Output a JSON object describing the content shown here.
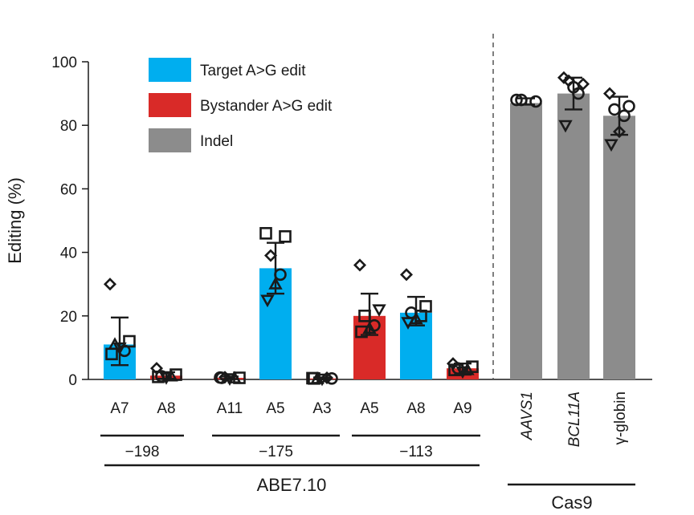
{
  "chart_data": {
    "type": "bar",
    "ylabel": "Editing (%)",
    "ylim": [
      0,
      100
    ],
    "yticks": [
      0,
      20,
      40,
      60,
      80,
      100
    ],
    "legend": {
      "placement": "top-left",
      "items": [
        {
          "label": "Target A>G edit",
          "color": "#00aeef"
        },
        {
          "label": "Bystander A>G edit",
          "color": "#d92a28"
        },
        {
          "label": "Indel",
          "color": "#8c8c8c"
        }
      ]
    },
    "bars": [
      {
        "label": "A7",
        "italic": false,
        "type": "target",
        "value": 11,
        "err": [
          4.5,
          19.5
        ],
        "points": [
          {
            "m": "diamond",
            "v": 30
          },
          {
            "m": "square",
            "v": 12
          },
          {
            "m": "triangle",
            "v": 11
          },
          {
            "m": "circle",
            "v": 9
          },
          {
            "m": "tri-down",
            "v": 10
          },
          {
            "m": "square",
            "v": 8
          }
        ]
      },
      {
        "label": "A8",
        "italic": false,
        "type": "bystander",
        "value": 1.2,
        "err": [
          0.2,
          2.3
        ],
        "points": [
          {
            "m": "diamond",
            "v": 3.5
          },
          {
            "m": "square",
            "v": 1.5
          },
          {
            "m": "circle",
            "v": 1
          },
          {
            "m": "triangle",
            "v": 1
          },
          {
            "m": "tri-down",
            "v": 0.6
          },
          {
            "m": "square",
            "v": 0.8
          }
        ]
      },
      {
        "label": "A11",
        "italic": false,
        "type": "bystander",
        "value": 0.5,
        "err": [
          0.1,
          0.9
        ],
        "points": [
          {
            "m": "circle",
            "v": 0.6
          },
          {
            "m": "square",
            "v": 0.5
          },
          {
            "m": "diamond",
            "v": 0.7
          },
          {
            "m": "triangle",
            "v": 0.4
          },
          {
            "m": "tri-down",
            "v": 0.3
          },
          {
            "m": "circle",
            "v": 0.5
          }
        ]
      },
      {
        "label": "A5",
        "italic": false,
        "type": "target",
        "value": 35,
        "err": [
          27,
          43
        ],
        "points": [
          {
            "m": "square",
            "v": 46
          },
          {
            "m": "square",
            "v": 45
          },
          {
            "m": "diamond",
            "v": 39
          },
          {
            "m": "circle",
            "v": 33
          },
          {
            "m": "triangle",
            "v": 30
          },
          {
            "m": "tri-down",
            "v": 25
          }
        ]
      },
      {
        "label": "A3",
        "italic": false,
        "type": "bystander",
        "value": 0.3,
        "err": [
          0.05,
          0.6
        ],
        "points": [
          {
            "m": "square",
            "v": 0.4
          },
          {
            "m": "circle",
            "v": 0.3
          },
          {
            "m": "triangle",
            "v": 0.2
          },
          {
            "m": "diamond",
            "v": 0.5
          },
          {
            "m": "tri-down",
            "v": 0.2
          },
          {
            "m": "square",
            "v": 0.3
          }
        ]
      },
      {
        "label": "A5",
        "italic": false,
        "type": "bystander",
        "value": 20,
        "err": [
          14,
          27
        ],
        "points": [
          {
            "m": "diamond",
            "v": 36
          },
          {
            "m": "tri-down",
            "v": 22
          },
          {
            "m": "square",
            "v": 20
          },
          {
            "m": "circle",
            "v": 17
          },
          {
            "m": "triangle",
            "v": 16
          },
          {
            "m": "square",
            "v": 15
          }
        ]
      },
      {
        "label": "A8",
        "italic": false,
        "type": "target",
        "value": 21,
        "err": [
          17,
          26
        ],
        "points": [
          {
            "m": "diamond",
            "v": 33
          },
          {
            "m": "square",
            "v": 23
          },
          {
            "m": "circle",
            "v": 21
          },
          {
            "m": "square",
            "v": 20
          },
          {
            "m": "triangle",
            "v": 19
          },
          {
            "m": "tri-down",
            "v": 18
          }
        ]
      },
      {
        "label": "A9",
        "italic": false,
        "type": "bystander",
        "value": 3.5,
        "err": [
          1.5,
          5
        ],
        "points": [
          {
            "m": "diamond",
            "v": 5
          },
          {
            "m": "square",
            "v": 4
          },
          {
            "m": "circle",
            "v": 3.5
          },
          {
            "m": "triangle",
            "v": 3
          },
          {
            "m": "tri-down",
            "v": 2.5
          },
          {
            "m": "square",
            "v": 3
          }
        ]
      },
      {
        "label": "AAVS1",
        "italic": true,
        "type": "indel",
        "value": 87,
        "err": [
          86.5,
          88.5
        ],
        "points": [
          {
            "m": "circle",
            "v": 88
          },
          {
            "m": "circle",
            "v": 87.5
          },
          {
            "m": "circle",
            "v": 88
          }
        ]
      },
      {
        "label": "BCL11A",
        "italic": true,
        "type": "indel",
        "value": 90,
        "err": [
          85,
          95
        ],
        "points": [
          {
            "m": "diamond",
            "v": 95
          },
          {
            "m": "diamond",
            "v": 93
          },
          {
            "m": "diamond",
            "v": 94
          },
          {
            "m": "circle",
            "v": 90
          },
          {
            "m": "circle",
            "v": 92
          },
          {
            "m": "tri-down",
            "v": 80
          }
        ]
      },
      {
        "label": "γ-globin",
        "italic": false,
        "type": "indel",
        "value": 83,
        "err": [
          77,
          89
        ],
        "points": [
          {
            "m": "diamond",
            "v": 90
          },
          {
            "m": "circle",
            "v": 86
          },
          {
            "m": "circle",
            "v": 85
          },
          {
            "m": "circle",
            "v": 83
          },
          {
            "m": "diamond",
            "v": 78
          },
          {
            "m": "tri-down",
            "v": 74
          }
        ]
      }
    ],
    "position_groups": [
      {
        "label": "−198",
        "bars": [
          0,
          1
        ]
      },
      {
        "label": "−175",
        "bars": [
          2,
          3,
          4
        ]
      },
      {
        "label": "−113",
        "bars": [
          5,
          6,
          7
        ]
      }
    ],
    "editor_groups": [
      {
        "label": "ABE7.10",
        "bars": [
          0,
          7
        ]
      },
      {
        "label": "Cas9",
        "bars": [
          8,
          10
        ]
      }
    ]
  }
}
